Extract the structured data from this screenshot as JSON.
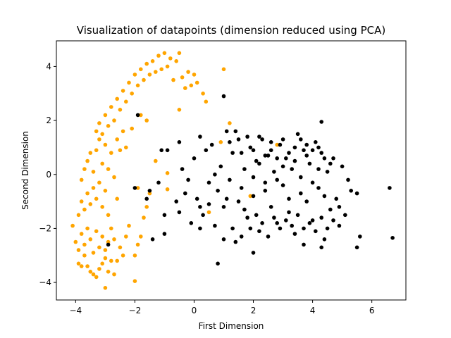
{
  "chart_data": {
    "type": "scatter",
    "title": "Visualization of datapoints (dimension reduced using PCA)",
    "xlabel": "First Dimension",
    "ylabel": "Second Dimension",
    "xlim": [
      -4.65,
      7.15
    ],
    "ylim": [
      -4.65,
      4.95
    ],
    "xticks": [
      -4,
      -2,
      0,
      2,
      4,
      6
    ],
    "yticks": [
      -4,
      -2,
      0,
      2,
      4
    ],
    "grid": false,
    "legend": "none",
    "colors": {
      "cluster_a": "#ffa500",
      "cluster_b": "#000000"
    },
    "series": [
      {
        "color": "#ffa500",
        "points": [
          [
            -4.1,
            -1.9
          ],
          [
            -4.0,
            -2.5
          ],
          [
            -3.9,
            -3.3
          ],
          [
            -3.8,
            -3.4
          ],
          [
            -3.7,
            -3.0
          ],
          [
            -3.6,
            -3.4
          ],
          [
            -3.5,
            -3.6
          ],
          [
            -3.4,
            -3.7
          ],
          [
            -3.3,
            -3.8
          ],
          [
            -3.2,
            -3.5
          ],
          [
            -3.1,
            -3.3
          ],
          [
            -3.0,
            -3.1
          ],
          [
            -2.9,
            -3.6
          ],
          [
            -2.8,
            -3.2
          ],
          [
            -2.7,
            -3.7
          ],
          [
            -2.6,
            -3.2
          ],
          [
            -2.5,
            -2.7
          ],
          [
            -2.4,
            -3.0
          ],
          [
            -3.0,
            -4.2
          ],
          [
            -3.9,
            -2.8
          ],
          [
            -3.8,
            -2.2
          ],
          [
            -3.7,
            -2.6
          ],
          [
            -3.6,
            -2.0
          ],
          [
            -3.5,
            -2.4
          ],
          [
            -3.4,
            -2.9
          ],
          [
            -3.3,
            -2.1
          ],
          [
            -3.2,
            -2.7
          ],
          [
            -3.1,
            -2.3
          ],
          [
            -3.0,
            -2.8
          ],
          [
            -2.9,
            -2.5
          ],
          [
            -2.8,
            -2.0
          ],
          [
            -2.7,
            -2.4
          ],
          [
            -3.9,
            -1.5
          ],
          [
            -3.8,
            -1.0
          ],
          [
            -3.7,
            -1.3
          ],
          [
            -3.6,
            -0.7
          ],
          [
            -3.5,
            -1.1
          ],
          [
            -3.4,
            -0.5
          ],
          [
            -3.3,
            -0.9
          ],
          [
            -3.2,
            -0.3
          ],
          [
            -3.1,
            -1.2
          ],
          [
            -3.0,
            -0.6
          ],
          [
            -2.9,
            -1.5
          ],
          [
            -3.8,
            -0.2
          ],
          [
            -3.7,
            0.2
          ],
          [
            -3.6,
            0.5
          ],
          [
            -3.5,
            0.8
          ],
          [
            -3.4,
            0.1
          ],
          [
            -3.3,
            0.9
          ],
          [
            -3.2,
            1.3
          ],
          [
            -3.1,
            0.4
          ],
          [
            -3.0,
            1.1
          ],
          [
            -2.9,
            0.2
          ],
          [
            -2.8,
            0.8
          ],
          [
            -3.3,
            1.6
          ],
          [
            -3.2,
            1.9
          ],
          [
            -3.1,
            1.5
          ],
          [
            -3.0,
            2.2
          ],
          [
            -2.9,
            1.8
          ],
          [
            -2.8,
            2.5
          ],
          [
            -2.7,
            2.0
          ],
          [
            -2.6,
            2.8
          ],
          [
            -2.5,
            2.4
          ],
          [
            -2.4,
            3.1
          ],
          [
            -2.3,
            2.7
          ],
          [
            -2.2,
            3.4
          ],
          [
            -2.1,
            3.0
          ],
          [
            -2.0,
            3.7
          ],
          [
            -1.9,
            3.3
          ],
          [
            -1.8,
            3.9
          ],
          [
            -1.7,
            3.5
          ],
          [
            -1.6,
            4.1
          ],
          [
            -1.5,
            3.7
          ],
          [
            -1.4,
            4.2
          ],
          [
            -1.3,
            3.8
          ],
          [
            -1.2,
            4.4
          ],
          [
            -1.1,
            3.9
          ],
          [
            -1.0,
            4.5
          ],
          [
            -0.9,
            4.0
          ],
          [
            -0.8,
            4.3
          ],
          [
            -0.7,
            3.5
          ],
          [
            -0.6,
            4.2
          ],
          [
            -0.5,
            4.5
          ],
          [
            -0.4,
            3.6
          ],
          [
            -0.3,
            3.2
          ],
          [
            -0.2,
            3.8
          ],
          [
            -0.1,
            3.3
          ],
          [
            0.0,
            3.7
          ],
          [
            0.1,
            3.4
          ],
          [
            0.3,
            3.0
          ],
          [
            0.4,
            2.7
          ],
          [
            1.0,
            3.9
          ],
          [
            -1.6,
            -1.2
          ],
          [
            -1.7,
            -1.6
          ],
          [
            -1.8,
            -2.3
          ],
          [
            -1.9,
            -2.6
          ],
          [
            -2.0,
            -3.0
          ],
          [
            -2.0,
            -3.95
          ],
          [
            -2.2,
            -1.9
          ],
          [
            -2.3,
            -2.3
          ],
          [
            -1.9,
            -0.5
          ],
          [
            -1.5,
            -0.7
          ],
          [
            -1.3,
            0.5
          ],
          [
            -0.9,
            -0.55
          ],
          [
            -0.9,
            0.05
          ],
          [
            -2.1,
            1.7
          ],
          [
            -2.6,
            1.3
          ],
          [
            -2.5,
            0.9
          ],
          [
            -2.7,
            -0.1
          ],
          [
            -2.6,
            -0.9
          ],
          [
            -1.8,
            2.2
          ],
          [
            -1.6,
            2.0
          ],
          [
            -0.5,
            2.4
          ],
          [
            0.5,
            -1.4
          ],
          [
            0.9,
            1.2
          ],
          [
            1.2,
            1.9
          ],
          [
            1.9,
            -0.8
          ],
          [
            2.8,
            1.1
          ],
          [
            -2.4,
            1.6
          ],
          [
            -2.3,
            1.0
          ]
        ]
      },
      {
        "color": "#000000",
        "points": [
          [
            -1.5,
            -0.6
          ],
          [
            -1.2,
            -0.3
          ],
          [
            -1.1,
            0.9
          ],
          [
            -1.0,
            -1.5
          ],
          [
            -1.0,
            -2.2
          ],
          [
            -0.9,
            0.9
          ],
          [
            -0.5,
            1.2
          ],
          [
            -0.3,
            -0.7
          ],
          [
            -0.2,
            -0.2
          ],
          [
            -0.1,
            -1.8
          ],
          [
            0.0,
            0.6
          ],
          [
            0.1,
            -0.9
          ],
          [
            0.2,
            1.4
          ],
          [
            0.3,
            -1.5
          ],
          [
            0.4,
            0.9
          ],
          [
            0.5,
            -0.3
          ],
          [
            0.6,
            1.1
          ],
          [
            0.7,
            -1.9
          ],
          [
            0.8,
            -3.3
          ],
          [
            0.9,
            0.3
          ],
          [
            1.0,
            -1.2
          ],
          [
            1.0,
            2.9
          ],
          [
            1.1,
            1.6
          ],
          [
            1.2,
            -0.2
          ],
          [
            1.3,
            0.8
          ],
          [
            1.4,
            -2.5
          ],
          [
            1.5,
            1.3
          ],
          [
            1.6,
            -0.5
          ],
          [
            1.7,
            0.2
          ],
          [
            1.8,
            -1.6
          ],
          [
            1.9,
            1.0
          ],
          [
            2.0,
            -0.8
          ],
          [
            2.1,
            0.5
          ],
          [
            2.2,
            -2.1
          ],
          [
            2.3,
            1.3
          ],
          [
            2.4,
            -0.3
          ],
          [
            2.5,
            0.7
          ],
          [
            2.6,
            -1.2
          ],
          [
            2.7,
            0.1
          ],
          [
            2.8,
            -1.8
          ],
          [
            2.9,
            1.1
          ],
          [
            3.0,
            -0.4
          ],
          [
            3.1,
            0.6
          ],
          [
            3.2,
            -1.4
          ],
          [
            3.3,
            0.2
          ],
          [
            3.4,
            -2.2
          ],
          [
            3.5,
            1.5
          ],
          [
            3.6,
            -0.7
          ],
          [
            3.7,
            0.9
          ],
          [
            3.8,
            -1.0
          ],
          [
            3.9,
            0.4
          ],
          [
            4.0,
            -1.7
          ],
          [
            4.1,
            1.2
          ],
          [
            4.2,
            -0.5
          ],
          [
            4.3,
            0.8
          ],
          [
            4.4,
            -2.4
          ],
          [
            4.5,
            0.1
          ],
          [
            4.6,
            -1.3
          ],
          [
            4.7,
            0.6
          ],
          [
            4.8,
            -0.9
          ],
          [
            4.9,
            -1.9
          ],
          [
            5.0,
            0.3
          ],
          [
            5.1,
            -1.5
          ],
          [
            5.2,
            -0.2
          ],
          [
            5.3,
            -0.6
          ],
          [
            5.5,
            -0.7
          ],
          [
            5.6,
            -2.3
          ],
          [
            5.5,
            -2.7
          ],
          [
            6.6,
            -0.5
          ],
          [
            6.7,
            -2.35
          ],
          [
            4.3,
            1.95
          ],
          [
            2.0,
            -0.1
          ],
          [
            2.2,
            0.4
          ],
          [
            2.4,
            -0.6
          ],
          [
            2.6,
            0.9
          ],
          [
            2.8,
            -0.2
          ],
          [
            3.0,
            0.3
          ],
          [
            3.2,
            -0.9
          ],
          [
            3.4,
            0.5
          ],
          [
            3.6,
            -0.1
          ],
          [
            3.8,
            0.7
          ],
          [
            4.0,
            -0.3
          ],
          [
            4.2,
            0.2
          ],
          [
            4.4,
            -0.8
          ],
          [
            4.6,
            0.4
          ],
          [
            1.5,
            -1.0
          ],
          [
            1.7,
            -1.3
          ],
          [
            1.9,
            -2.0
          ],
          [
            2.1,
            -1.5
          ],
          [
            2.3,
            -1.8
          ],
          [
            2.5,
            -2.3
          ],
          [
            2.7,
            -1.6
          ],
          [
            2.9,
            -2.0
          ],
          [
            3.1,
            -1.7
          ],
          [
            3.3,
            -1.9
          ],
          [
            3.5,
            -1.5
          ],
          [
            3.7,
            -2.0
          ],
          [
            3.9,
            -1.8
          ],
          [
            4.1,
            -2.1
          ],
          [
            4.3,
            -1.6
          ],
          [
            4.5,
            -2.0
          ],
          [
            4.7,
            -1.7
          ],
          [
            4.9,
            -1.2
          ],
          [
            1.2,
            1.2
          ],
          [
            1.4,
            1.6
          ],
          [
            1.6,
            0.8
          ],
          [
            1.8,
            1.4
          ],
          [
            2.0,
            0.9
          ],
          [
            2.2,
            1.4
          ],
          [
            2.4,
            0.7
          ],
          [
            2.6,
            1.2
          ],
          [
            2.8,
            0.6
          ],
          [
            3.0,
            1.3
          ],
          [
            3.2,
            0.8
          ],
          [
            3.4,
            1.0
          ],
          [
            3.6,
            1.3
          ],
          [
            3.8,
            1.1
          ],
          [
            4.0,
            0.9
          ],
          [
            4.2,
            1.0
          ],
          [
            4.4,
            0.6
          ],
          [
            0.5,
            -1.1
          ],
          [
            0.8,
            -0.6
          ],
          [
            1.1,
            -0.9
          ],
          [
            0.2,
            -1.2
          ],
          [
            -0.6,
            -1.0
          ],
          [
            -0.4,
            0.2
          ],
          [
            0.7,
            0.0
          ],
          [
            1.3,
            -2.0
          ],
          [
            1.6,
            -2.3
          ],
          [
            2.0,
            -2.9
          ],
          [
            3.7,
            -2.6
          ],
          [
            4.3,
            -2.7
          ],
          [
            -1.4,
            -2.4
          ],
          [
            -1.6,
            -0.9
          ],
          [
            -1.9,
            2.2
          ],
          [
            -2.0,
            -0.5
          ],
          [
            -2.9,
            -2.6
          ],
          [
            1.0,
            -2.4
          ],
          [
            0.2,
            -2.0
          ],
          [
            -0.5,
            -1.4
          ]
        ]
      }
    ]
  }
}
